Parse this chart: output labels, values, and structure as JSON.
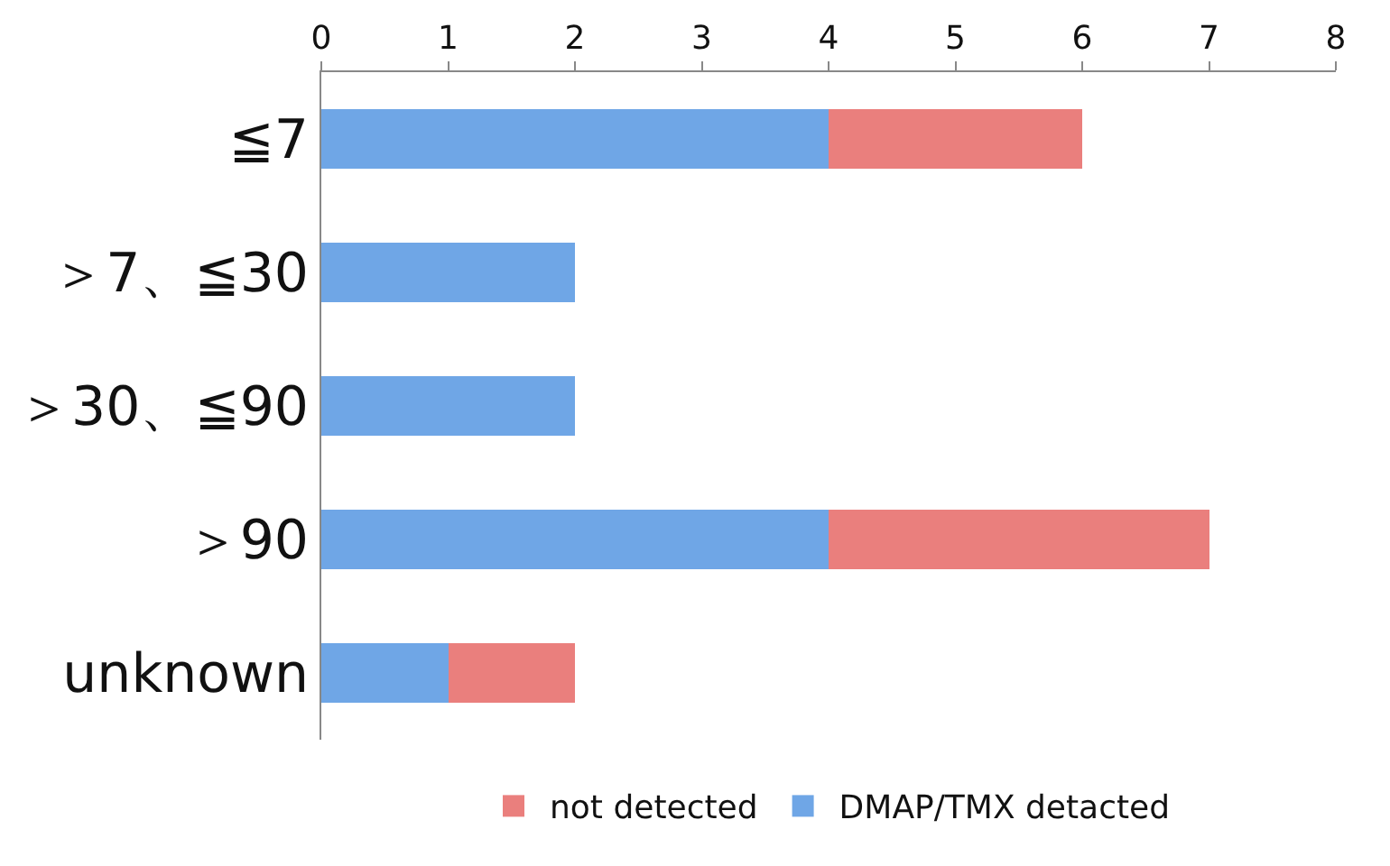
{
  "chart_data": {
    "type": "bar",
    "orientation": "horizontal",
    "stacked": true,
    "categories": [
      "≦7",
      "＞7、≦30",
      "＞30、≦90",
      "＞90",
      "unknown"
    ],
    "series": [
      {
        "name": "DMAP/TMX detacted",
        "color": "#6fa6e6",
        "values": [
          4,
          2,
          2,
          4,
          1
        ]
      },
      {
        "name": "not detected",
        "color": "#ea7f7d",
        "values": [
          2,
          0,
          0,
          3,
          1
        ]
      }
    ],
    "xlim": [
      0,
      8
    ],
    "xticks": [
      0,
      1,
      2,
      3,
      4,
      5,
      6,
      7,
      8
    ],
    "grid": false,
    "legend": "bottom"
  }
}
